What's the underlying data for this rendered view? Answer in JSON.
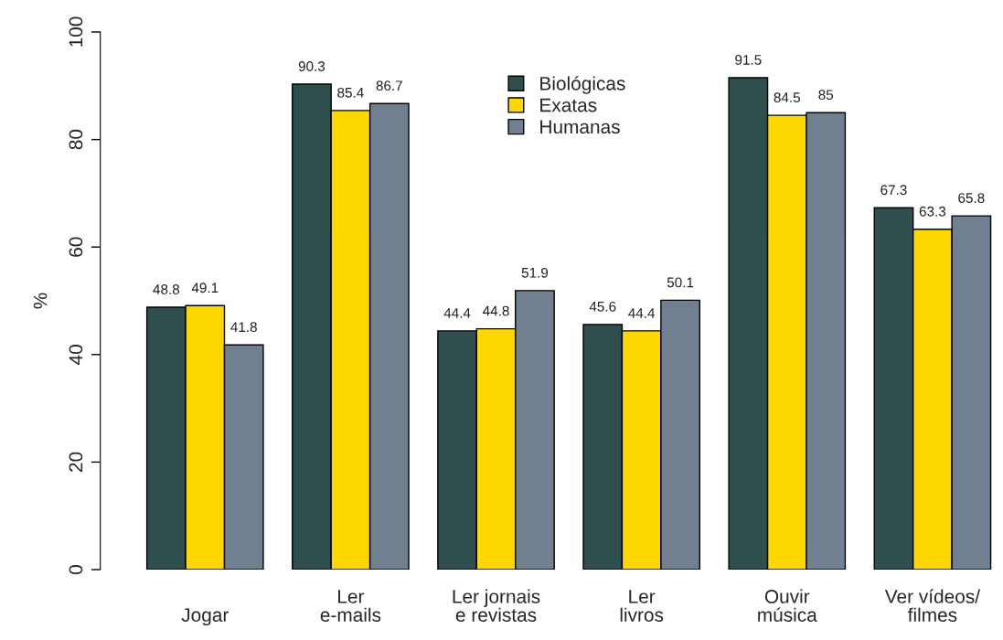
{
  "chart_data": {
    "type": "bar",
    "ylabel": "%",
    "categories": [
      "Jogar",
      "Ler\ne-mails",
      "Ler jornais\ne revistas",
      "Ler\nlivros",
      "Ouvir\nmúsica",
      "Ver vídeos/\nfilmes"
    ],
    "series": [
      {
        "name": "Biológicas",
        "color": "#2f4f4f",
        "values": [
          48.8,
          90.3,
          44.4,
          45.6,
          91.5,
          67.3
        ]
      },
      {
        "name": "Exatas",
        "color": "#ffd700",
        "values": [
          49.1,
          85.4,
          44.8,
          44.4,
          84.5,
          63.3
        ]
      },
      {
        "name": "Humanas",
        "color": "#708090",
        "values": [
          41.8,
          86.7,
          51.9,
          50.1,
          85,
          65.8
        ]
      }
    ],
    "ylim": [
      0,
      100
    ],
    "yticks": [
      0,
      20,
      40,
      60,
      80,
      100
    ],
    "data_labels": true,
    "legend": "top",
    "grid": false
  }
}
